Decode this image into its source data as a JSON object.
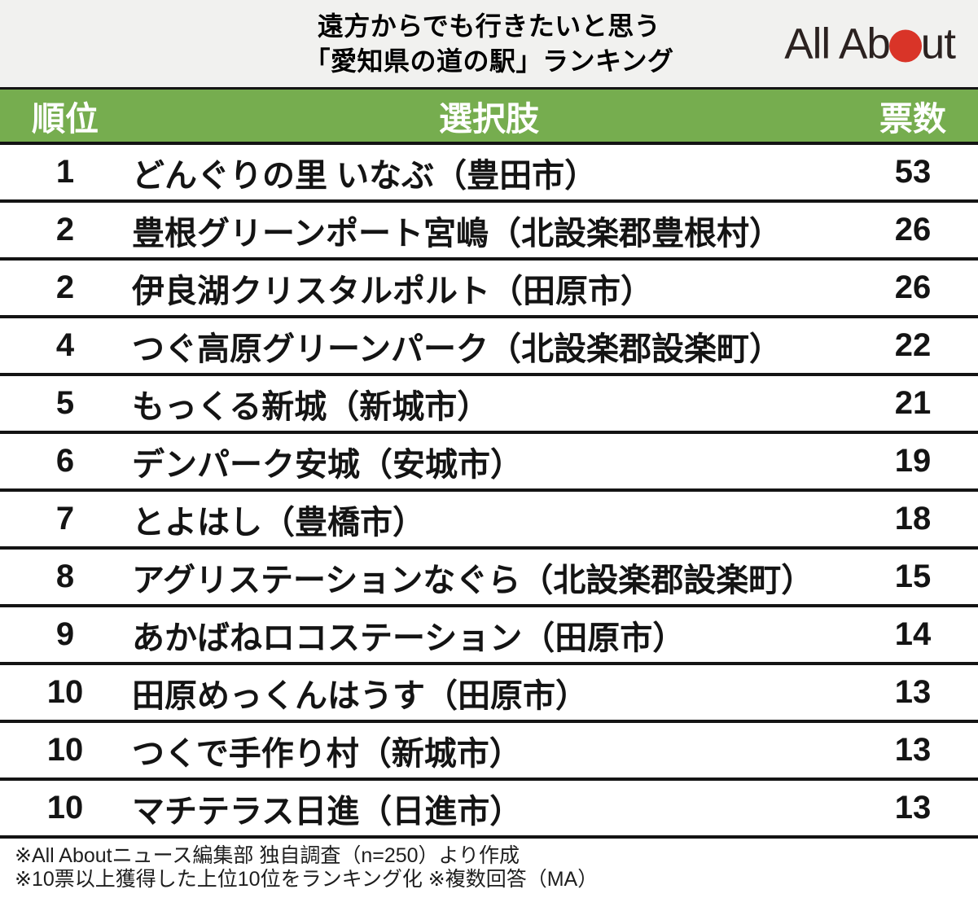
{
  "header": {
    "title_line1": "遠方からでも行きたいと思う",
    "title_line2": "「愛知県の道の駅」ランキング",
    "logo": {
      "text_left": "All Ab",
      "text_right": "ut",
      "dot_color": "#d93428"
    }
  },
  "table": {
    "header_bg_color": "#76ad4f",
    "columns": {
      "rank": "順位",
      "choice": "選択肢",
      "votes": "票数"
    },
    "rows": [
      {
        "rank": "1",
        "name": "どんぐりの里 いなぶ（豊田市）",
        "votes": "53"
      },
      {
        "rank": "2",
        "name": "豊根グリーンポート宮嶋（北設楽郡豊根村）",
        "votes": "26"
      },
      {
        "rank": "2",
        "name": "伊良湖クリスタルポルト（田原市）",
        "votes": "26"
      },
      {
        "rank": "4",
        "name": "つぐ高原グリーンパーク（北設楽郡設楽町）",
        "votes": "22"
      },
      {
        "rank": "5",
        "name": "もっくる新城（新城市）",
        "votes": "21"
      },
      {
        "rank": "6",
        "name": "デンパーク安城（安城市）",
        "votes": "19"
      },
      {
        "rank": "7",
        "name": "とよはし（豊橋市）",
        "votes": "18"
      },
      {
        "rank": "8",
        "name": "アグリステーションなぐら（北設楽郡設楽町）",
        "votes": "15"
      },
      {
        "rank": "9",
        "name": "あかばねロコステーション（田原市）",
        "votes": "14"
      },
      {
        "rank": "10",
        "name": "田原めっくんはうす（田原市）",
        "votes": "13"
      },
      {
        "rank": "10",
        "name": "つくで手作り村（新城市）",
        "votes": "13"
      },
      {
        "rank": "10",
        "name": "マチテラス日進（日進市）",
        "votes": "13"
      }
    ]
  },
  "footer": {
    "line1": "※All Aboutニュース編集部 独自調査（n=250）より作成",
    "line2": "※10票以上獲得した上位10位をランキング化 ※複数回答（MA）"
  },
  "chart_data": {
    "type": "table",
    "title": "遠方からでも行きたいと思う「愛知県の道の駅」ランキング",
    "columns": [
      "順位",
      "選択肢",
      "票数"
    ],
    "rows": [
      [
        1,
        "どんぐりの里 いなぶ（豊田市）",
        53
      ],
      [
        2,
        "豊根グリーンポート宮嶋（北設楽郡豊根村）",
        26
      ],
      [
        2,
        "伊良湖クリスタルポルト（田原市）",
        26
      ],
      [
        4,
        "つぐ高原グリーンパーク（北設楽郡設楽町）",
        22
      ],
      [
        5,
        "もっくる新城（新城市）",
        21
      ],
      [
        6,
        "デンパーク安城（安城市）",
        19
      ],
      [
        7,
        "とよはし（豊橋市）",
        18
      ],
      [
        8,
        "アグリステーションなぐら（北設楽郡設楽町）",
        15
      ],
      [
        9,
        "あかばねロコステーション（田原市）",
        14
      ],
      [
        10,
        "田原めっくんはうす（田原市）",
        13
      ],
      [
        10,
        "つくで手作り村（新城市）",
        13
      ],
      [
        10,
        "マチテラス日進（日進市）",
        13
      ]
    ],
    "source_note": "All Aboutニュース編集部 独自調査（n=250）",
    "method_note": "10票以上獲得した上位10位をランキング化、複数回答（MA）"
  }
}
